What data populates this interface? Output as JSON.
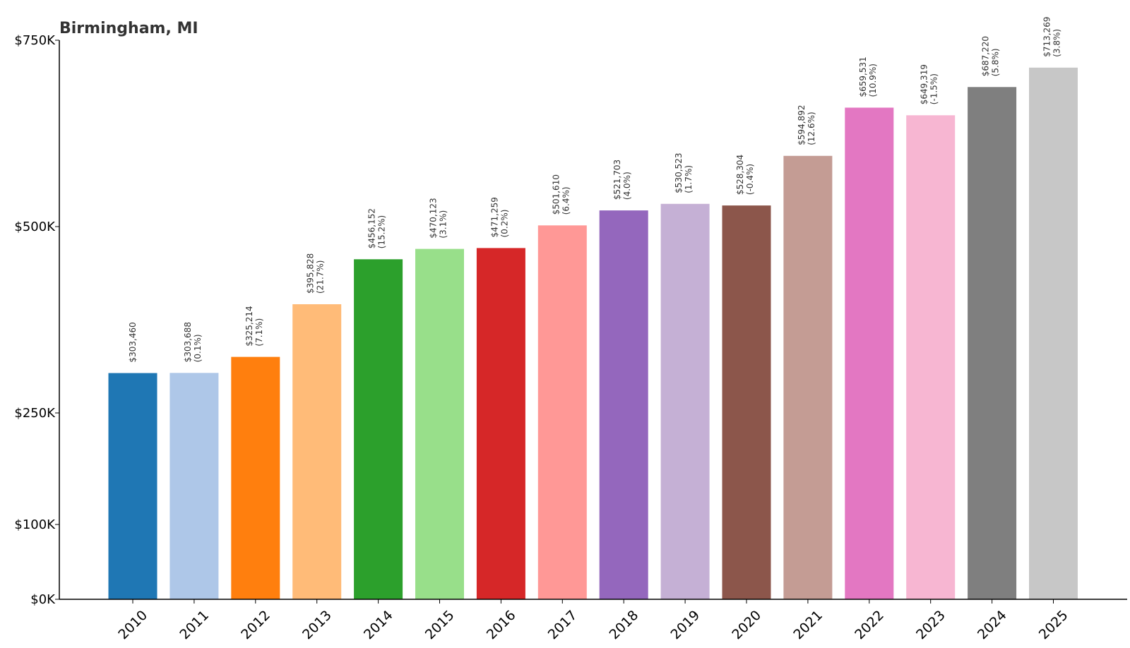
{
  "chart_data": {
    "type": "bar",
    "title": "Birmingham, MI",
    "xlabel": "",
    "ylabel": "",
    "categories": [
      "2010",
      "2011",
      "2012",
      "2013",
      "2014",
      "2015",
      "2016",
      "2017",
      "2018",
      "2019",
      "2020",
      "2021",
      "2022",
      "2023",
      "2024",
      "2025"
    ],
    "values": [
      303460,
      303688,
      325214,
      395828,
      456152,
      470123,
      471259,
      501610,
      521703,
      530523,
      528304,
      594892,
      659531,
      649319,
      687220,
      713269
    ],
    "value_labels": [
      "$303,460",
      "$303,688",
      "$325,214",
      "$395,828",
      "$456,152",
      "$470,123",
      "$471,259",
      "$501,610",
      "$521,703",
      "$530,523",
      "$528,304",
      "$594,892",
      "$659,531",
      "$649,319",
      "$687,220",
      "$713,269"
    ],
    "change_labels": [
      "",
      "(0.1%)",
      "(7.1%)",
      "(21.7%)",
      "(15.2%)",
      "(3.1%)",
      "(0.2%)",
      "(6.4%)",
      "(4.0%)",
      "(1.7%)",
      "(-0.4%)",
      "(12.6%)",
      "(10.9%)",
      "(-1.5%)",
      "(5.8%)",
      "(3.8%)"
    ],
    "colors": [
      "#1f77b4",
      "#aec7e8",
      "#ff7f0e",
      "#ffbb78",
      "#2ca02c",
      "#98df8a",
      "#d62728",
      "#ff9896",
      "#9467bd",
      "#c5b0d5",
      "#8c564b",
      "#c49c94",
      "#e377c2",
      "#f7b6d2",
      "#7f7f7f",
      "#c7c7c7"
    ],
    "yticks": [
      0,
      100000,
      250000,
      500000,
      750000
    ],
    "ytick_labels": [
      "$0K",
      "$100K",
      "$250K",
      "$500K",
      "$750K"
    ],
    "ylim": [
      0,
      750000
    ],
    "grid": false,
    "legend": "none"
  }
}
